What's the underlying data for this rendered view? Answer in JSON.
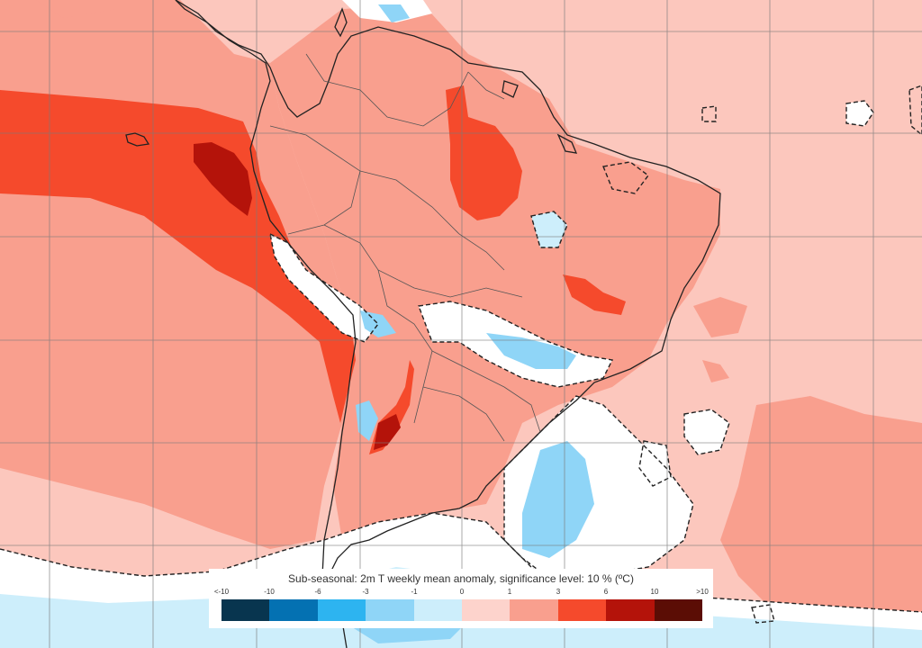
{
  "legend": {
    "title": "Sub-seasonal: 2m T weekly mean anomaly, significance level: 10 % (ºC)",
    "ticks": [
      "<-10",
      "-10",
      "-6",
      "-3",
      "-1",
      "0",
      "1",
      "3",
      "6",
      "10",
      ">10"
    ],
    "colors": [
      "#08354f",
      "#0471b2",
      "#2db4f0",
      "#8fd5f7",
      "#cdeefb",
      "#fdd3cc",
      "#f99f8e",
      "#f54a2c",
      "#b4130a",
      "#5b0d05"
    ]
  },
  "map": {
    "region": "South America",
    "background_color": "#fcc7bd",
    "ocean_anomaly_color": "#f99f8e",
    "hot_band_color": "#f54a2c",
    "extreme_hot_color": "#b4130a",
    "cold_color": "#8fd5f7",
    "insignificant_color": "#ffffff",
    "grid_color": "#7a7a7a",
    "coastline_color": "#222222"
  }
}
